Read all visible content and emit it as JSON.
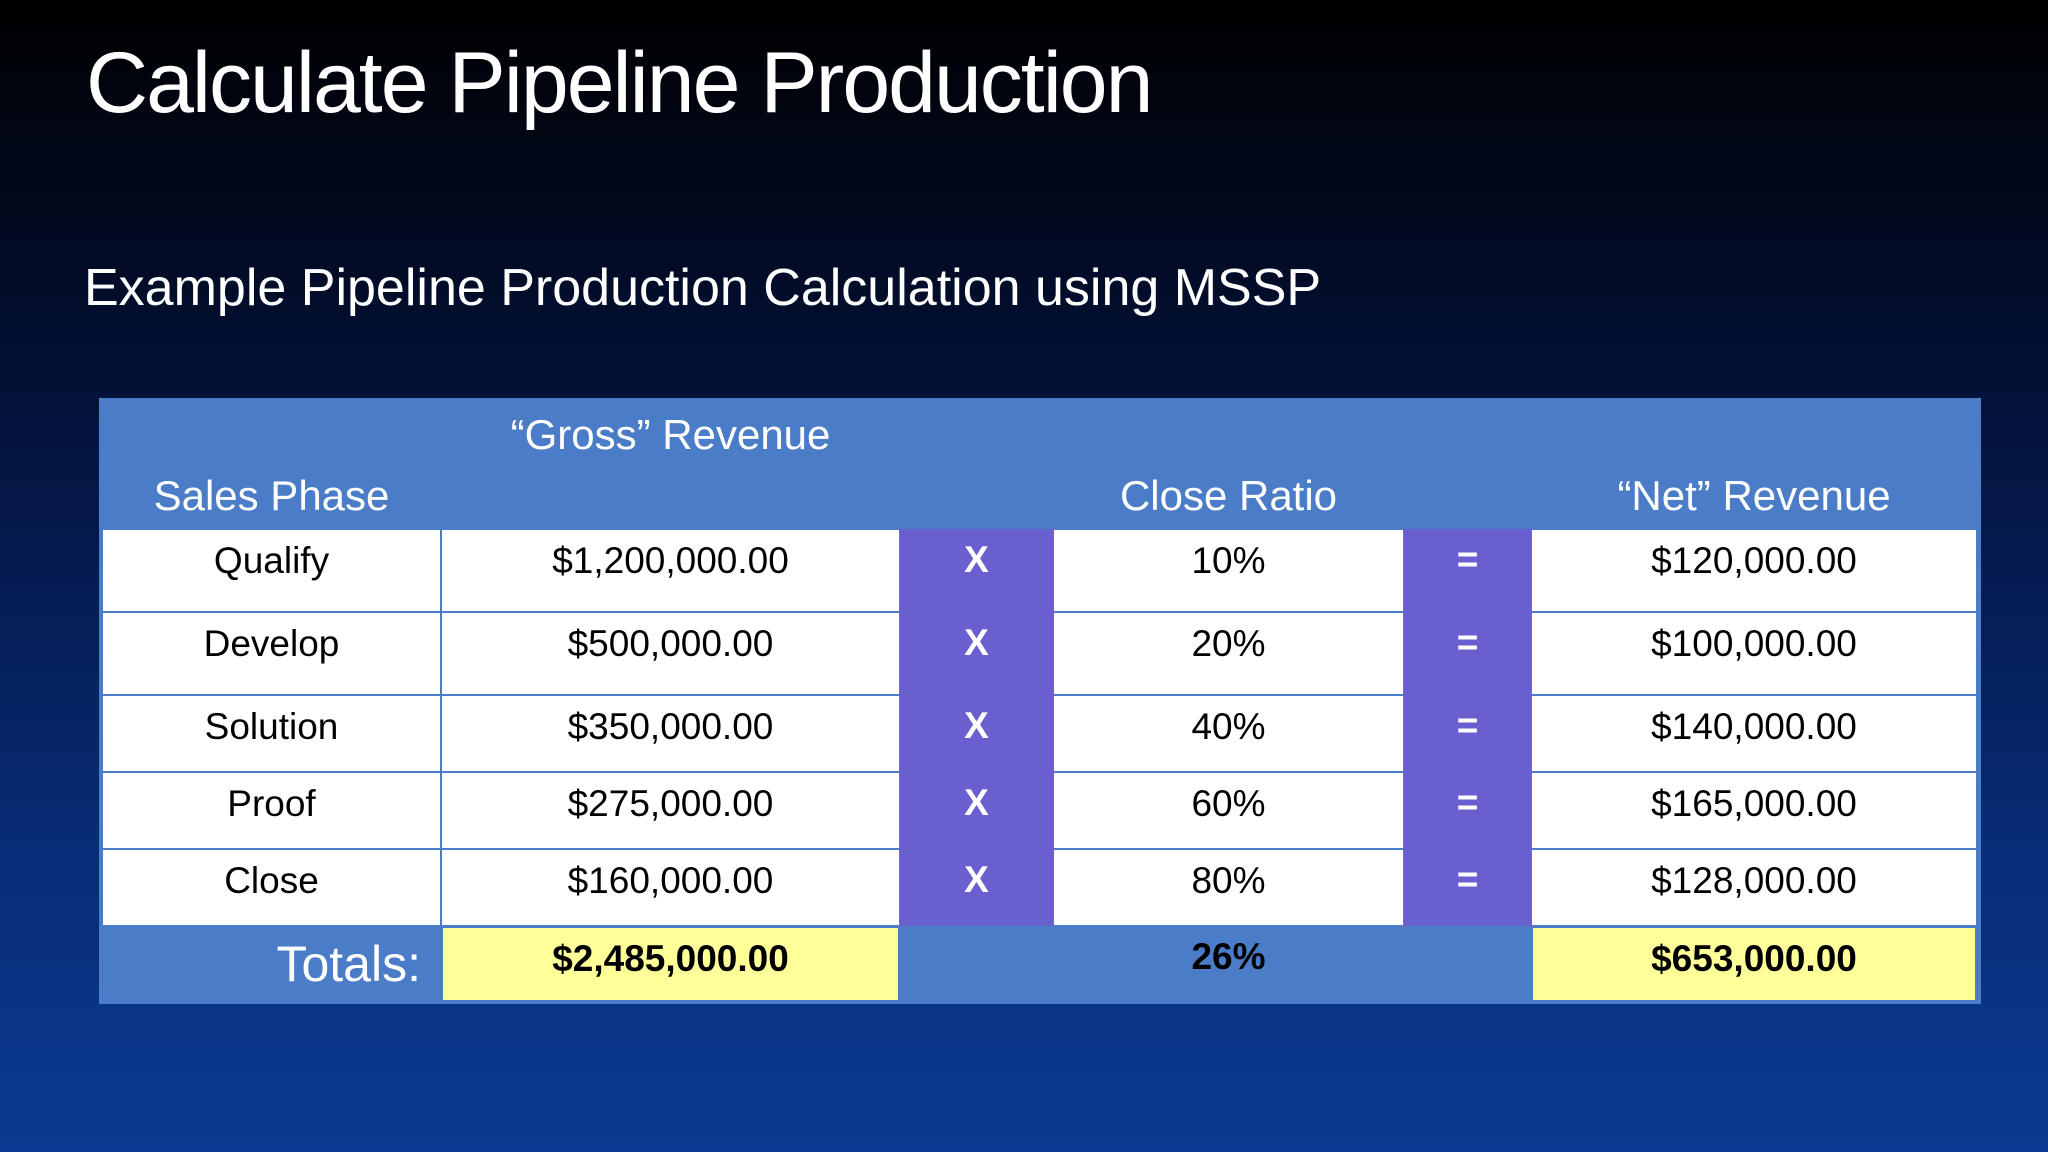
{
  "title": "Calculate Pipeline Production",
  "subtitle": "Example Pipeline Production Calculation using MSSP",
  "table": {
    "headers": [
      "Sales Phase",
      "“Gross” Revenue",
      "Close Ratio",
      "“Net” Revenue"
    ],
    "rows": [
      [
        "Qualify",
        "$1,200,000.00",
        "X",
        "10%",
        "=",
        "$120,000.00"
      ],
      [
        "Develop",
        "$500,000.00",
        "X",
        "20%",
        "=",
        "$100,000.00"
      ],
      [
        "Solution",
        "$350,000.00",
        "X",
        "40%",
        "=",
        "$140,000.00"
      ],
      [
        "Proof",
        "$275,000.00",
        "X",
        "60%",
        "=",
        "$165,000.00"
      ],
      [
        "Close",
        "$160,000.00",
        "X",
        "80%",
        "=",
        "$128,000.00"
      ]
    ],
    "totals": [
      "Totals:",
      "$2,485,000.00",
      "26%",
      "$653,000.00"
    ]
  }
}
